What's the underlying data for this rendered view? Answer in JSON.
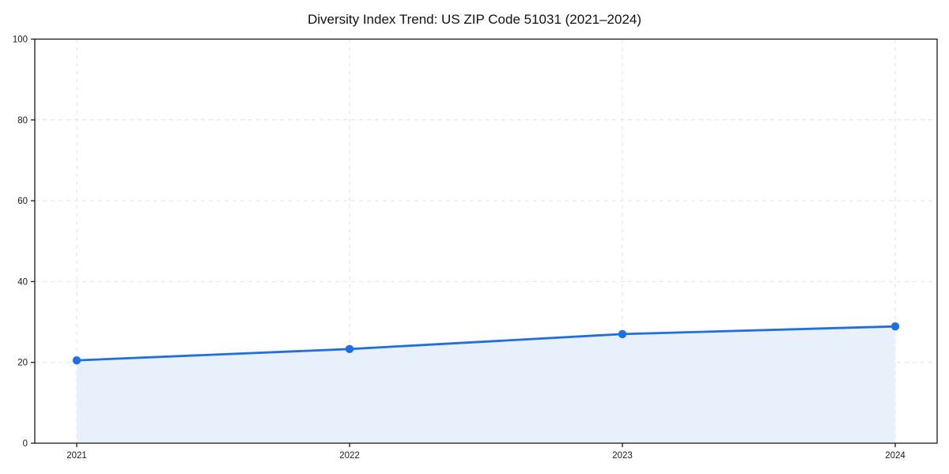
{
  "page": {
    "background_color": "#ffffff"
  },
  "chart_data": {
    "type": "line",
    "title": "Diversity Index Trend: US ZIP Code 51031 (2021–2024)",
    "x": [
      2021,
      2022,
      2023,
      2024
    ],
    "series": [
      {
        "name": "Diversity Index",
        "values": [
          20.5,
          23.3,
          27.0,
          28.9
        ]
      }
    ],
    "xlabel": "",
    "ylabel": "",
    "ylim": [
      0,
      100
    ],
    "yticks": [
      0,
      20,
      40,
      60,
      80,
      100
    ],
    "xtick_labels": [
      "2021",
      "2022",
      "2023",
      "2024"
    ],
    "grid": "dashed-both-axes",
    "legend": "none",
    "marker": "circle",
    "style": {
      "line_color": "#1f6fe0",
      "marker_color": "#1f6fe0",
      "area_fill_color": "#e8f0fc",
      "grid_color": "#e2e2e2",
      "spine_color": "#1a1a1a",
      "tick_label_color": "#1a1a1a",
      "title_color": "#111111"
    }
  }
}
